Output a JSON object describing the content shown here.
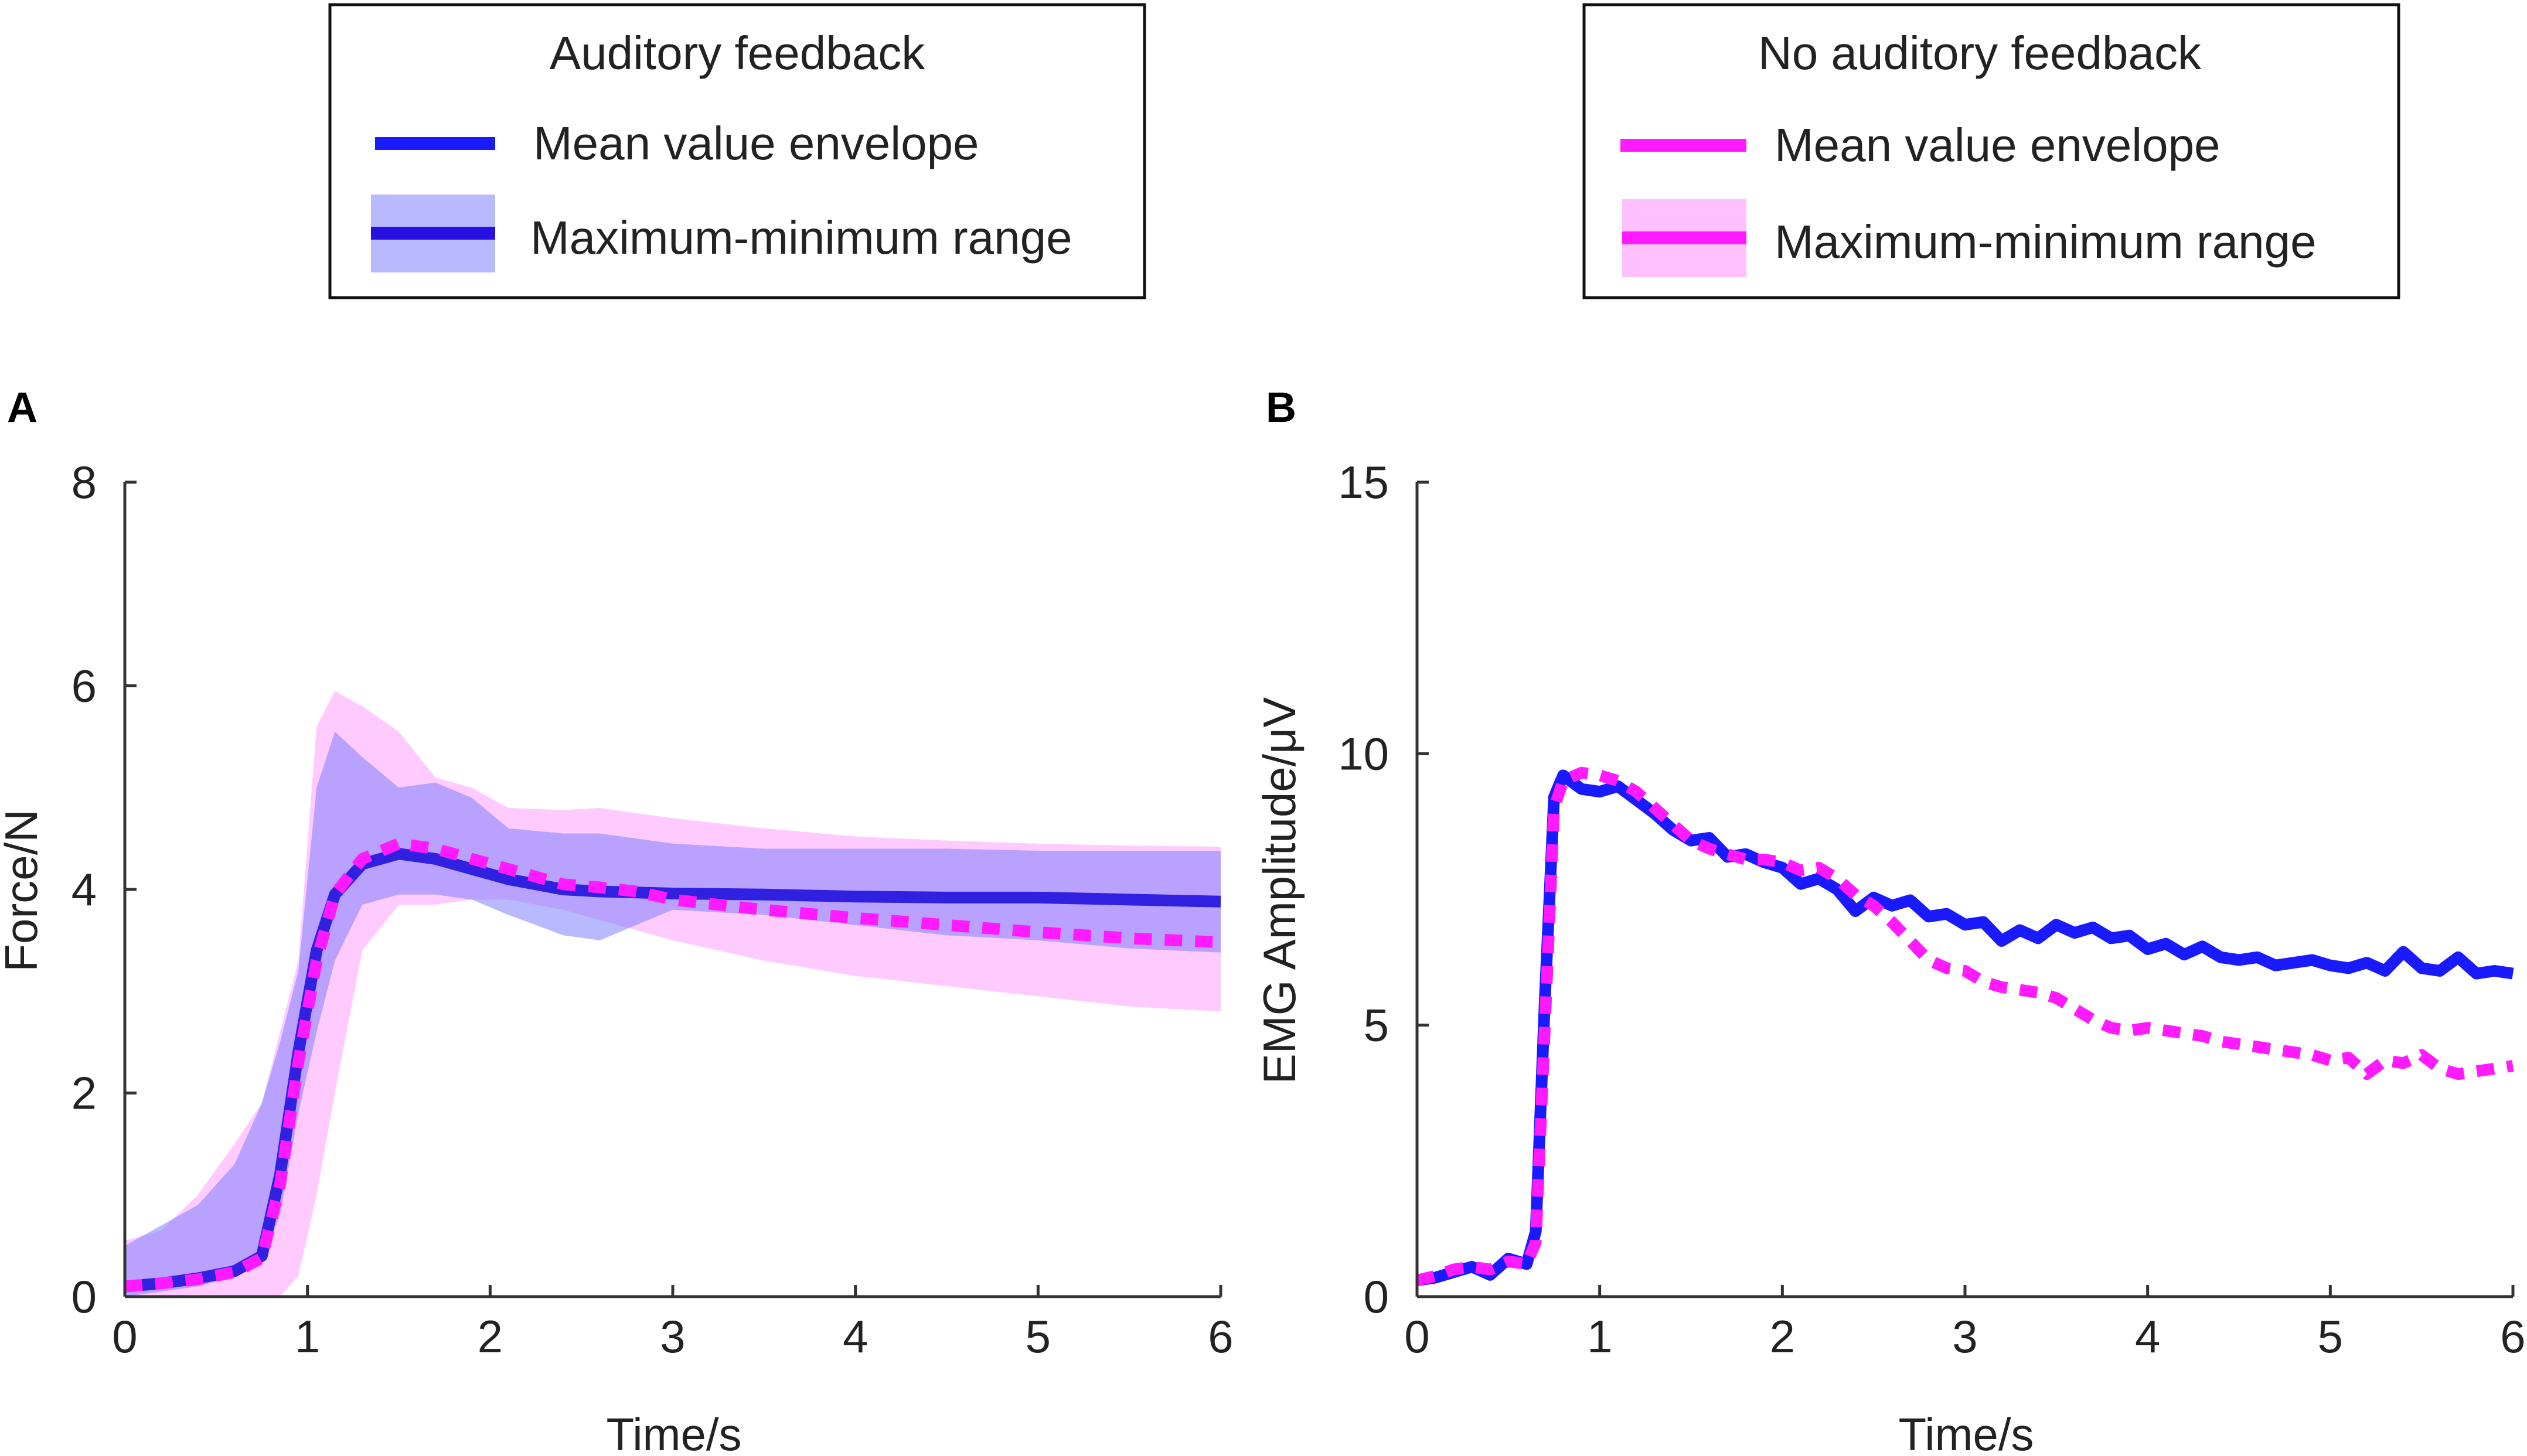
{
  "panels": {
    "a": {
      "letter": "A"
    },
    "b": {
      "letter": "B"
    }
  },
  "legends": {
    "auditory": {
      "title": "Auditory feedback",
      "mean_label": "Mean value envelope",
      "range_label": "Maximum-minimum range",
      "color": "#1a1aff",
      "fill_color": "#8080ff"
    },
    "no_auditory": {
      "title": "No auditory feedback",
      "mean_label": "Mean value envelope",
      "range_label": "Maximum-minimum range",
      "color": "#ff1aff",
      "fill_color": "#ff8cff"
    }
  },
  "chart_data": [
    {
      "type": "line",
      "panel": "A",
      "title": "",
      "xlabel": "Time/s",
      "ylabel": "Force/N",
      "xlim": [
        0,
        6
      ],
      "ylim": [
        0,
        8
      ],
      "xticks": [
        0,
        1,
        2,
        3,
        4,
        5,
        6
      ],
      "yticks": [
        0,
        2,
        4,
        6,
        8
      ],
      "x": [
        0,
        0.2,
        0.4,
        0.6,
        0.75,
        0.85,
        0.95,
        1.05,
        1.15,
        1.3,
        1.5,
        1.7,
        1.9,
        2.1,
        2.4,
        2.6,
        2.8,
        3.0,
        3.5,
        4.0,
        4.5,
        5.0,
        5.5,
        6.0
      ],
      "series": [
        {
          "name": "Auditory feedback - Mean value envelope",
          "color": "#3020e0",
          "style": "solid",
          "values": [
            0.1,
            0.13,
            0.18,
            0.25,
            0.4,
            1.2,
            2.4,
            3.4,
            3.95,
            4.25,
            4.35,
            4.3,
            4.2,
            4.1,
            4.0,
            3.98,
            3.97,
            3.96,
            3.95,
            3.93,
            3.92,
            3.92,
            3.9,
            3.88
          ],
          "range_lower": [
            0.0,
            0.05,
            0.1,
            0.2,
            0.35,
            0.8,
            1.8,
            2.6,
            3.3,
            3.85,
            3.95,
            3.95,
            3.9,
            3.75,
            3.55,
            3.5,
            3.65,
            3.8,
            3.75,
            3.65,
            3.55,
            3.5,
            3.42,
            3.38
          ],
          "range_upper": [
            0.5,
            0.7,
            0.9,
            1.3,
            1.9,
            2.5,
            3.2,
            5.0,
            5.55,
            5.3,
            5.0,
            5.05,
            4.9,
            4.6,
            4.55,
            4.55,
            4.5,
            4.45,
            4.4,
            4.4,
            4.4,
            4.38,
            4.38,
            4.38
          ]
        },
        {
          "name": "No auditory feedback - Mean value envelope",
          "color": "#ff1aff",
          "style": "dashed",
          "values": [
            0.1,
            0.13,
            0.17,
            0.24,
            0.38,
            1.1,
            2.3,
            3.3,
            3.95,
            4.3,
            4.45,
            4.4,
            4.3,
            4.2,
            4.05,
            4.02,
            3.98,
            3.9,
            3.8,
            3.72,
            3.65,
            3.58,
            3.52,
            3.48
          ],
          "range_lower": [
            0.0,
            0.0,
            0.0,
            0.0,
            0.0,
            0.0,
            0.2,
            1.0,
            2.0,
            3.4,
            3.85,
            3.85,
            3.9,
            3.9,
            3.8,
            3.7,
            3.6,
            3.5,
            3.3,
            3.15,
            3.05,
            2.95,
            2.85,
            2.8
          ],
          "range_upper": [
            0.55,
            0.65,
            1.0,
            1.5,
            1.9,
            2.6,
            3.3,
            5.6,
            5.95,
            5.8,
            5.55,
            5.1,
            5.0,
            4.8,
            4.78,
            4.8,
            4.75,
            4.7,
            4.6,
            4.52,
            4.48,
            4.45,
            4.43,
            4.42
          ]
        }
      ]
    },
    {
      "type": "line",
      "panel": "B",
      "title": "",
      "xlabel": "Time/s",
      "ylabel": "EMG Amplitude/μV",
      "xlim": [
        0,
        6
      ],
      "ylim": [
        0,
        15
      ],
      "xticks": [
        0,
        1,
        2,
        3,
        4,
        5,
        6
      ],
      "yticks": [
        0,
        5,
        10,
        15
      ],
      "x": [
        0,
        0.1,
        0.2,
        0.3,
        0.4,
        0.5,
        0.6,
        0.65,
        0.7,
        0.75,
        0.8,
        0.9,
        1.0,
        1.1,
        1.2,
        1.3,
        1.4,
        1.5,
        1.6,
        1.7,
        1.8,
        1.9,
        2.0,
        2.1,
        2.2,
        2.3,
        2.4,
        2.5,
        2.6,
        2.7,
        2.8,
        2.9,
        3.0,
        3.1,
        3.2,
        3.3,
        3.4,
        3.5,
        3.6,
        3.7,
        3.8,
        3.9,
        4.0,
        4.1,
        4.2,
        4.3,
        4.4,
        4.5,
        4.6,
        4.7,
        4.8,
        4.9,
        5.0,
        5.1,
        5.2,
        5.3,
        5.4,
        5.5,
        5.6,
        5.7,
        5.8,
        5.9,
        6.0
      ],
      "series": [
        {
          "name": "Auditory feedback - Mean value envelope",
          "color": "#1a1aff",
          "style": "solid",
          "values": [
            0.3,
            0.35,
            0.45,
            0.55,
            0.4,
            0.7,
            0.6,
            1.2,
            5.5,
            9.2,
            9.6,
            9.35,
            9.3,
            9.4,
            9.15,
            8.9,
            8.6,
            8.4,
            8.45,
            8.1,
            8.15,
            8.0,
            7.9,
            7.6,
            7.7,
            7.5,
            7.1,
            7.35,
            7.2,
            7.3,
            7.0,
            7.05,
            6.85,
            6.9,
            6.55,
            6.75,
            6.6,
            6.85,
            6.7,
            6.8,
            6.6,
            6.65,
            6.4,
            6.5,
            6.3,
            6.45,
            6.25,
            6.2,
            6.25,
            6.1,
            6.15,
            6.2,
            6.1,
            6.05,
            6.15,
            6.0,
            6.35,
            6.05,
            6.0,
            6.25,
            5.95,
            6.0,
            5.95
          ]
        },
        {
          "name": "No auditory feedback - Mean value envelope",
          "color": "#ff1aff",
          "style": "dashed",
          "values": [
            0.3,
            0.38,
            0.5,
            0.55,
            0.5,
            0.65,
            0.6,
            1.0,
            5.0,
            9.0,
            9.5,
            9.65,
            9.6,
            9.5,
            9.3,
            9.0,
            8.7,
            8.4,
            8.25,
            8.15,
            8.05,
            8.05,
            8.0,
            7.85,
            7.9,
            7.7,
            7.4,
            7.2,
            6.9,
            6.55,
            6.2,
            6.05,
            6.0,
            5.8,
            5.7,
            5.65,
            5.6,
            5.5,
            5.3,
            5.1,
            4.95,
            4.9,
            4.95,
            4.9,
            4.85,
            4.8,
            4.7,
            4.65,
            4.6,
            4.55,
            4.5,
            4.45,
            4.35,
            4.4,
            4.1,
            4.35,
            4.3,
            4.45,
            4.2,
            4.1,
            4.15,
            4.2,
            4.25
          ]
        }
      ]
    }
  ]
}
